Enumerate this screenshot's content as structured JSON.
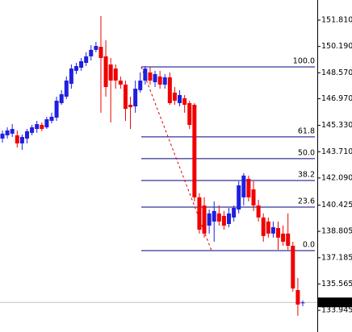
{
  "chart_data": {
    "type": "candlestick",
    "open": [
      144.52,
      144.72,
      144.82,
      144.72,
      144.22,
      144.52,
      144.87,
      145.11,
      145.36,
      145.21,
      145.61,
      145.81,
      146.7,
      147.1,
      147.89,
      148.69,
      148.88,
      149.18,
      149.58,
      149.98,
      150.17,
      149.58,
      149.08,
      148.83,
      148.09,
      147.84,
      146.6,
      146.5,
      147.5,
      148.09,
      148.59,
      147.99,
      148.34,
      147.84,
      148.29,
      147.35,
      146.7,
      147.0,
      146.7,
      146.6,
      140.9,
      140.4,
      139.16,
      139.41,
      139.91,
      139.76,
      139.26,
      139.66,
      140.15,
      140.9,
      142.04,
      141.39,
      140.4,
      139.66,
      139.41,
      138.67,
      139.01,
      138.67,
      138.67,
      137.92,
      135.19,
      134.4
    ],
    "high": [
      145.02,
      145.21,
      145.41,
      145.02,
      144.77,
      145.11,
      145.36,
      145.61,
      145.51,
      145.86,
      146.11,
      147.1,
      147.5,
      148.34,
      149.08,
      149.18,
      149.48,
      149.83,
      150.27,
      150.47,
      152.06,
      150.57,
      149.48,
      149.08,
      148.34,
      148.09,
      147.1,
      148.09,
      148.59,
      148.98,
      148.93,
      148.69,
      148.69,
      148.49,
      148.59,
      147.69,
      147.5,
      147.2,
      146.85,
      146.7,
      141.15,
      140.9,
      140.15,
      140.65,
      140.4,
      140.06,
      140.25,
      140.4,
      141.89,
      142.39,
      142.24,
      141.89,
      140.75,
      139.91,
      139.66,
      139.41,
      139.41,
      139.16,
      139.91,
      138.17,
      135.94,
      134.55
    ],
    "low": [
      144.27,
      144.52,
      144.62,
      143.97,
      143.82,
      144.22,
      144.72,
      144.87,
      144.97,
      145.11,
      145.46,
      145.61,
      146.6,
      146.95,
      147.59,
      148.49,
      148.69,
      148.98,
      149.33,
      149.83,
      146.11,
      147.1,
      145.51,
      147.59,
      147.59,
      145.61,
      145.11,
      146.11,
      147.35,
      147.84,
      147.84,
      147.69,
      147.59,
      147.59,
      146.6,
      146.6,
      146.5,
      146.11,
      145.11,
      140.65,
      138.67,
      138.42,
      138.67,
      138.17,
      139.16,
      138.91,
      139.06,
      139.41,
      139.91,
      140.4,
      140.65,
      140.06,
      139.41,
      138.17,
      138.42,
      138.42,
      137.67,
      137.92,
      137.67,
      135.1,
      133.61,
      134.2
    ],
    "close": [
      144.82,
      145.02,
      145.11,
      144.22,
      144.62,
      144.97,
      145.21,
      145.41,
      145.11,
      145.71,
      145.86,
      146.85,
      147.25,
      148.09,
      148.83,
      148.98,
      149.28,
      149.58,
      149.98,
      150.22,
      149.48,
      147.69,
      148.09,
      148.09,
      147.84,
      146.35,
      146.45,
      147.59,
      148.09,
      148.83,
      148.09,
      148.49,
      147.84,
      148.29,
      146.7,
      146.85,
      147.2,
      146.6,
      145.36,
      140.9,
      138.91,
      138.67,
      139.91,
      140.06,
      139.41,
      139.16,
      139.91,
      140.25,
      141.64,
      142.24,
      140.9,
      140.4,
      139.66,
      138.52,
      138.67,
      139.06,
      138.42,
      138.17,
      137.92,
      135.29,
      134.3,
      134.43
    ],
    "up_color": "#1f1fe0",
    "down_color": "#f00000",
    "ylim": [
      132.61,
      153.05
    ],
    "yticks": [
      {
        "value": 151.81,
        "label": "151.810"
      },
      {
        "value": 150.19,
        "label": "150.190"
      },
      {
        "value": 148.57,
        "label": "148.570"
      },
      {
        "value": 146.97,
        "label": "146.970"
      },
      {
        "value": 145.33,
        "label": "145.330"
      },
      {
        "value": 143.71,
        "label": "143.710"
      },
      {
        "value": 142.09,
        "label": "142.090"
      },
      {
        "value": 140.425,
        "label": "140.425"
      },
      {
        "value": 138.805,
        "label": "138.805"
      },
      {
        "value": 137.185,
        "label": "137.185"
      },
      {
        "value": 135.565,
        "label": "135.565"
      },
      {
        "value": 133.945,
        "label": "133.945"
      }
    ],
    "fib_color": "#000080",
    "fib_levels": [
      {
        "label": "100.0",
        "price": 148.93
      },
      {
        "label": "61.8",
        "price": 144.62
      },
      {
        "label": "50.0",
        "price": 143.28
      },
      {
        "label": "38.2",
        "price": 141.94
      },
      {
        "label": "23.6",
        "price": 140.3
      },
      {
        "label": "0.0",
        "price": 137.62
      }
    ],
    "current_price": 134.434
  }
}
